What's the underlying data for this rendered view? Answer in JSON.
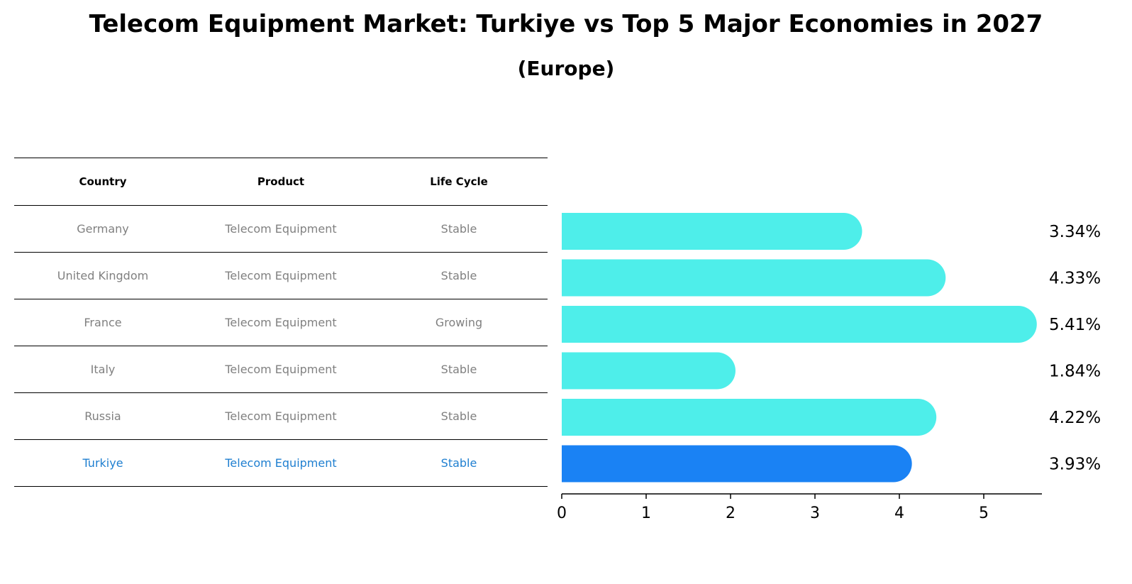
{
  "title": "Telecom Equipment Market: Turkiye vs Top 5 Major Economies in 2027",
  "subtitle": "(Europe)",
  "table": {
    "headers": [
      "Country",
      "Product",
      "Life Cycle"
    ],
    "rows": [
      [
        "Germany",
        "Telecom Equipment",
        "Stable"
      ],
      [
        "United Kingdom",
        "Telecom Equipment",
        "Stable"
      ],
      [
        "France",
        "Telecom Equipment",
        "Growing"
      ],
      [
        "Italy",
        "Telecom Equipment",
        "Stable"
      ],
      [
        "Russia",
        "Telecom Equipment",
        "Stable"
      ],
      [
        "Turkiye",
        "Telecom Equipment",
        "Stable"
      ]
    ],
    "highlight_row": 5,
    "highlight_color": "#1f7fd0"
  },
  "chart_data": {
    "type": "bar",
    "orientation": "horizontal",
    "categories": [
      "Germany",
      "United Kingdom",
      "France",
      "Italy",
      "Russia",
      "Turkiye"
    ],
    "values": [
      3.34,
      4.33,
      5.41,
      1.84,
      4.22,
      3.93
    ],
    "labels": [
      "3.34%",
      "4.33%",
      "5.41%",
      "1.84%",
      "4.22%",
      "3.93%"
    ],
    "xticks": [
      0,
      1,
      2,
      3,
      4,
      5
    ],
    "xlim": [
      0,
      5.7
    ],
    "colors": {
      "default": "#4eeeea",
      "highlight": "#1a82f4"
    },
    "highlight_index": 5
  }
}
